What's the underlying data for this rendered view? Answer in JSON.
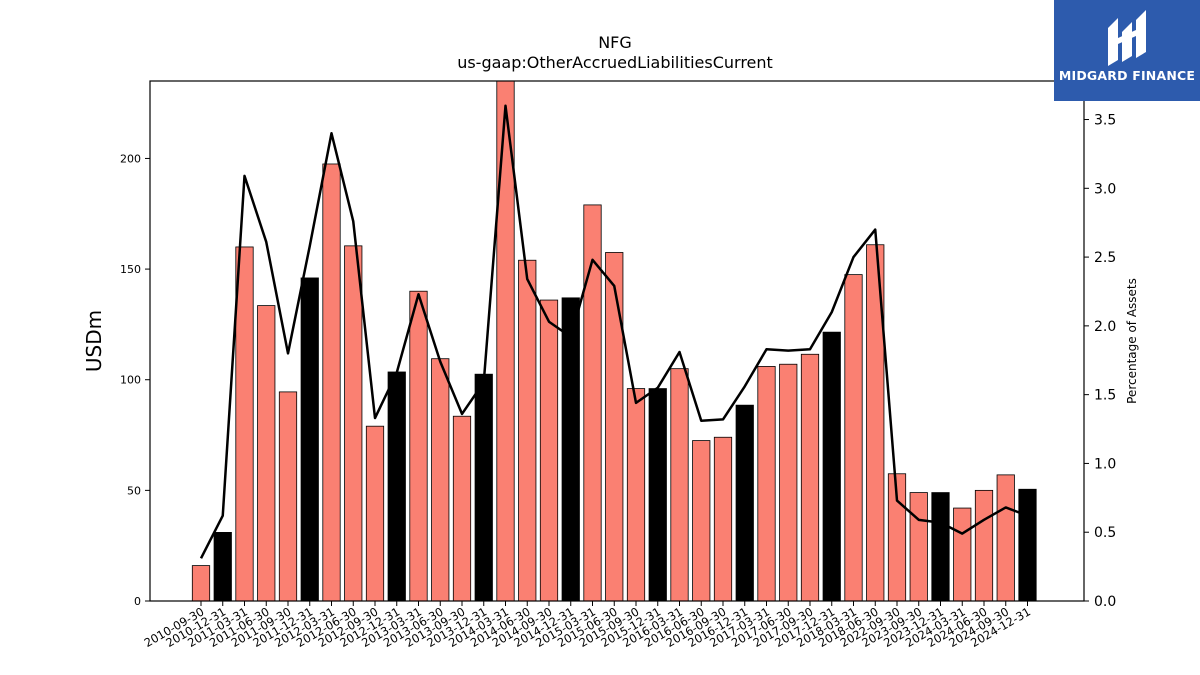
{
  "chart_data": {
    "type": "bar",
    "title": "NFG",
    "subtitle": "us-gaap:OtherAccruedLiabilitiesCurrent",
    "ylabel": "USDm",
    "y2label": "Percentage of Assets",
    "ylim": [
      0,
      235
    ],
    "y2lim": [
      0,
      3.78
    ],
    "yticks": [
      0,
      50,
      100,
      150,
      200
    ],
    "y2ticks": [
      "0.0",
      "0.5",
      "1.0",
      "1.5",
      "2.0",
      "2.5",
      "3.0",
      "3.5"
    ],
    "categories": [
      "2010-09-30",
      "2010-12-31",
      "2011-03-31",
      "2011-06-30",
      "2011-09-30",
      "2011-12-31",
      "2012-03-31",
      "2012-06-30",
      "2012-09-30",
      "2012-12-31",
      "2013-03-31",
      "2013-06-30",
      "2013-09-30",
      "2013-12-31",
      "2014-03-31",
      "2014-06-30",
      "2014-09-30",
      "2014-12-31",
      "2015-03-31",
      "2015-06-30",
      "2015-09-30",
      "2015-12-31",
      "2016-03-31",
      "2016-06-30",
      "2016-09-30",
      "2016-12-31",
      "2017-03-31",
      "2017-06-30",
      "2017-09-30",
      "2017-12-31",
      "2018-03-31",
      "2018-06-30",
      "2022-09-30",
      "2023-09-30",
      "2023-12-31",
      "2024-03-31",
      "2024-06-30",
      "2024-09-30",
      "2024-12-31"
    ],
    "series": [
      {
        "kind": "bar",
        "values": [
          16,
          31,
          160,
          133.5,
          94.5,
          146,
          197.5,
          160.5,
          79,
          103.5,
          140,
          109.5,
          83.5,
          102.5,
          235,
          154,
          136,
          137,
          179,
          157.5,
          96,
          96,
          105,
          72.5,
          74,
          88.5,
          106,
          107,
          111.5,
          121.5,
          147.5,
          161,
          57.5,
          49,
          49,
          42,
          50,
          57,
          50.5
        ],
        "highlight": [
          false,
          true,
          false,
          false,
          false,
          true,
          false,
          false,
          false,
          true,
          false,
          false,
          false,
          true,
          false,
          false,
          false,
          true,
          false,
          false,
          false,
          true,
          false,
          false,
          false,
          true,
          false,
          false,
          false,
          true,
          false,
          false,
          false,
          false,
          true,
          false,
          false,
          false,
          true
        ]
      },
      {
        "kind": "line",
        "axis": "right",
        "values": [
          0.31,
          0.62,
          3.09,
          2.61,
          1.8,
          2.58,
          3.4,
          2.76,
          1.33,
          1.66,
          2.23,
          1.74,
          1.36,
          1.59,
          3.6,
          2.34,
          2.03,
          1.92,
          2.48,
          2.29,
          1.44,
          1.55,
          1.81,
          1.31,
          1.32,
          1.56,
          1.83,
          1.82,
          1.83,
          2.1,
          2.5,
          2.7,
          0.73,
          0.59,
          0.57,
          0.49,
          0.59,
          0.68,
          0.62
        ]
      }
    ],
    "colors": {
      "bar": "#fa8072",
      "highlight": "#000000",
      "line": "#000000"
    }
  },
  "logo": {
    "text": "MIDGARD FINANCE",
    "background": "#2d5bad"
  }
}
